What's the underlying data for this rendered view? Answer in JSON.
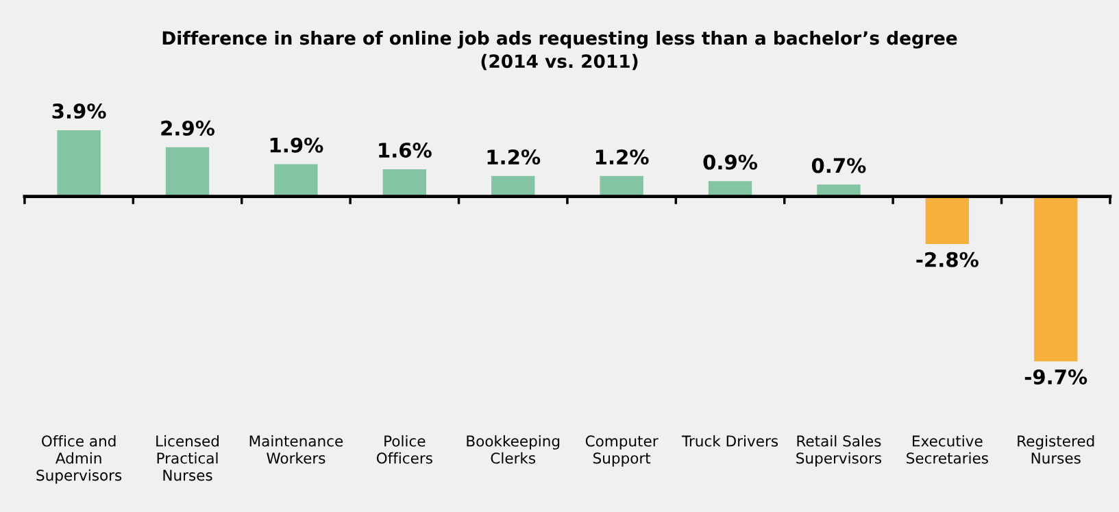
{
  "chart_data": {
    "type": "bar",
    "title": "Difference in share of online job ads requesting less than a bachelor’s degree\n(2014 vs. 2011)",
    "categories": [
      "Office and\nAdmin\nSupervisors",
      "Licensed\nPractical\nNurses",
      "Maintenance\nWorkers",
      "Police\nOfficers",
      "Bookkeeping\nClerks",
      "Computer\nSupport",
      "Truck Drivers",
      "Retail Sales\nSupervisors",
      "Executive\nSecretaries",
      "Registered\nNurses"
    ],
    "values": [
      3.9,
      2.9,
      1.9,
      1.6,
      1.2,
      1.2,
      0.9,
      0.7,
      -2.8,
      -9.7
    ],
    "colors": [
      "#83c5a2",
      "#83c5a2",
      "#83c5a2",
      "#83c5a2",
      "#83c5a2",
      "#83c5a2",
      "#83c5a2",
      "#83c5a2",
      "#f8b03c",
      "#f8b03c"
    ],
    "value_labels": [
      "3.9%",
      "2.9%",
      "1.9%",
      "1.6%",
      "1.2%",
      "1.2%",
      "0.9%",
      "0.7%",
      "-2.8%",
      "-9.7%"
    ],
    "grid": false,
    "legend": false
  }
}
